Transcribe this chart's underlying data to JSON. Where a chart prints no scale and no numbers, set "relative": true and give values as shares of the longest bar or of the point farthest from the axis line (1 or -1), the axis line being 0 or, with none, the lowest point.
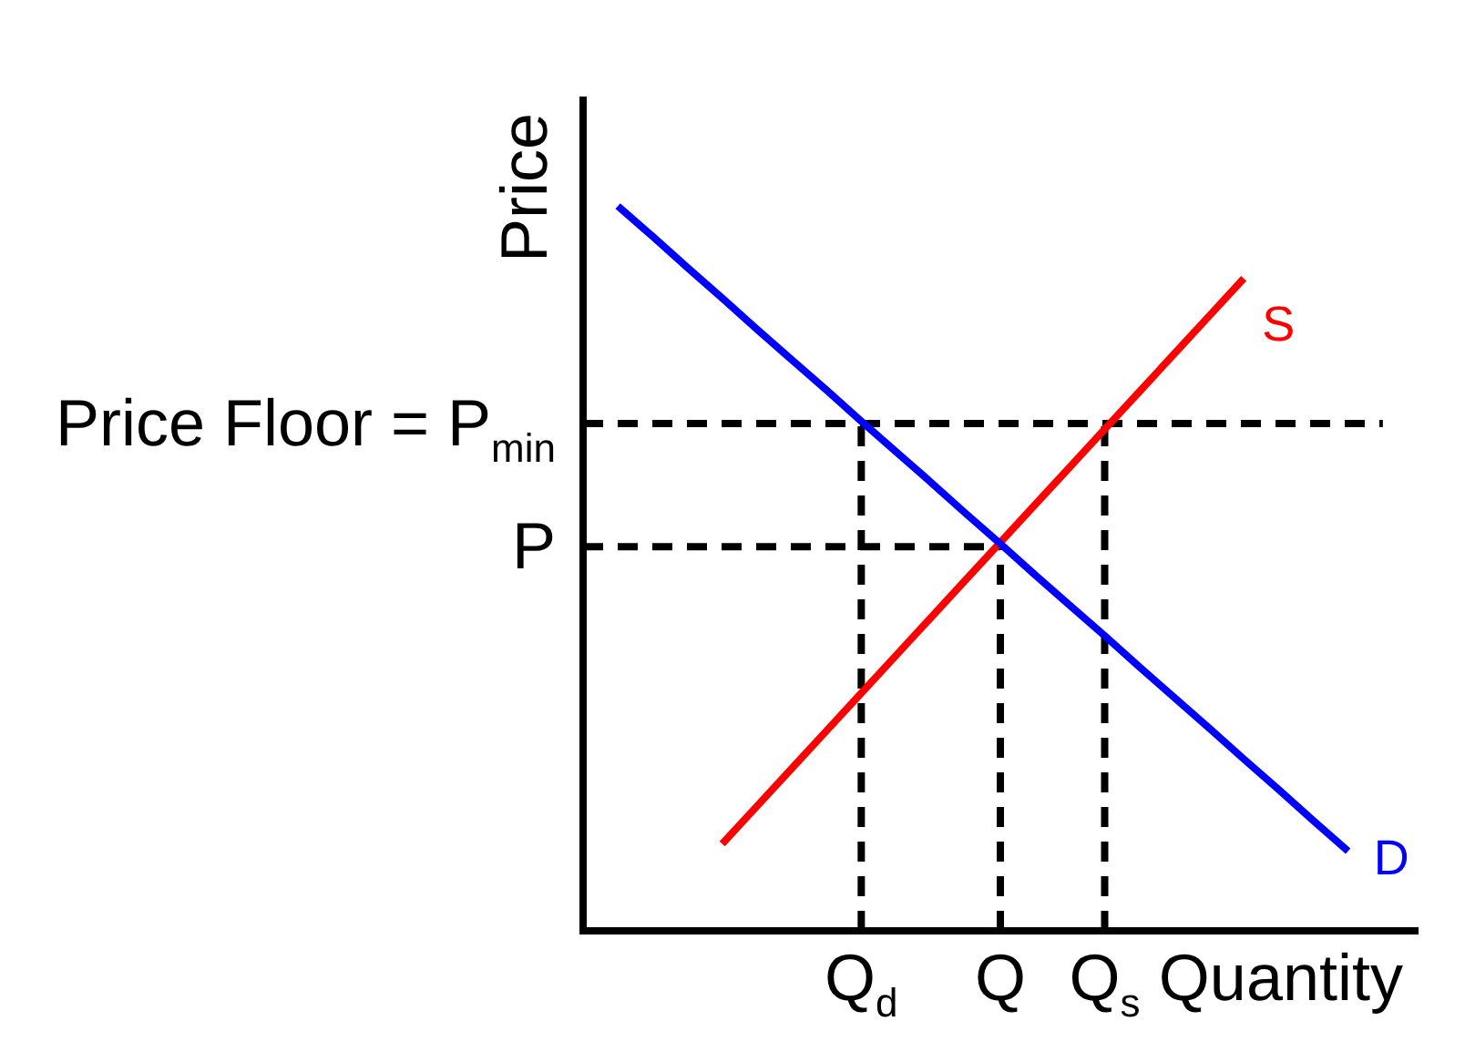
{
  "chart_data": {
    "type": "line",
    "relative": true,
    "xlabel": "Quantity",
    "ylabel": "Price",
    "categories": [
      null,
      null,
      null,
      null,
      null,
      null,
      null,
      null,
      "Q$_{d}$",
      null,
      null,
      null,
      "Q",
      null,
      null,
      "Q$_{s}$",
      null,
      null,
      null,
      null,
      null,
      null,
      null,
      null,
      null
    ],
    "series": [
      {
        "name": "D",
        "color": "#0000ff",
        "line_style": "solid",
        "values": [
          null,
          1,
          0.958,
          0.915,
          0.873,
          0.83,
          0.788,
          0.746,
          0.703,
          0.661,
          0.619,
          0.576,
          0.534,
          0.491,
          0.449,
          0.407,
          0.364,
          0.322,
          0.28,
          0.237,
          0.195,
          0.152,
          0.11,
          null,
          null
        ]
      },
      {
        "name": "S",
        "color": "#ff0000",
        "line_style": "solid",
        "values": [
          null,
          null,
          null,
          null,
          0.12,
          0.172,
          0.224,
          0.276,
          0.328,
          0.38,
          0.432,
          0.484,
          0.536,
          0.588,
          0.64,
          0.692,
          0.744,
          0.796,
          0.848,
          0.9,
          null,
          null,
          null,
          null,
          null
        ]
      },
      {
        "name": "Price Floor = P$_{min}$",
        "color": "#000000",
        "line_style": "dashed",
        "values": [
          0.7,
          0.7,
          0.7,
          0.7,
          0.7,
          0.7,
          0.7,
          0.7,
          0.7,
          0.7,
          0.7,
          0.7,
          0.7,
          0.7,
          0.7,
          0.7,
          0.7,
          0.7,
          0.7,
          0.7,
          0.7,
          0.7,
          0.7,
          0.7,
          null
        ]
      },
      {
        "name": "P",
        "color": "#000000",
        "line_style": "dashed",
        "values": [
          0.53,
          0.53,
          0.53,
          0.53,
          0.53,
          0.53,
          0.53,
          0.53,
          0.53,
          0.53,
          0.53,
          0.53,
          0.53,
          null,
          null,
          null,
          null,
          null,
          null,
          null,
          null,
          null,
          null,
          null,
          null
        ]
      },
      {
        "color": "#000000",
        "line_style": "dashed",
        "x": [
          "Q$_{d}$",
          "Q$_{d}$"
        ],
        "values": [
          0,
          0.7
        ]
      },
      {
        "color": "#000000",
        "line_style": "dashed",
        "x": [
          "Q",
          "Q"
        ],
        "values": [
          0,
          0.53
        ]
      },
      {
        "color": "#000000",
        "line_style": "dashed",
        "x": [
          "Q$_{s}$",
          "Q$_{s}$"
        ],
        "values": [
          0,
          0.7
        ]
      }
    ],
    "grid": false,
    "legend": false,
    "marker": "none"
  }
}
